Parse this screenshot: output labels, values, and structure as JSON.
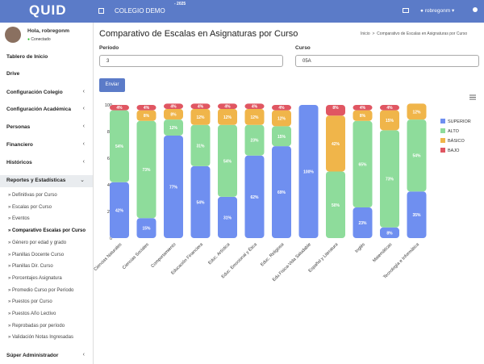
{
  "header": {
    "logo": "QUID",
    "school": "COLEGIO DEMO",
    "year": "- 2025",
    "user": "robregonm"
  },
  "sidebar": {
    "greeting": "Hola, robregonm",
    "status": "Conectado",
    "menu": [
      "Tablero de Inicio",
      "Drive",
      "Configuración Colegio",
      "Configuración Académica",
      "Personas",
      "Financiero",
      "Históricos",
      "Reportes y Estadísticas"
    ],
    "submenu": [
      "Definitivas por Curso",
      "Escalas por Curso",
      "Eventos",
      "Comparativo Escalas por Curso",
      "Género por edad y grado",
      "Planillas Docente Curso",
      "Planillas Dir. Curso",
      "Porcentajes Asignatura",
      "Promedio Curso por Período",
      "Puestos por Curso",
      "Puestos Año Lectivo",
      "Reprobadas por período",
      "Validación Notas Ingresadas"
    ],
    "last": "Súper Administrador"
  },
  "page": {
    "title": "Comparativo de Escalas en Asignaturas por Curso",
    "breadcrumb": [
      "Inicio",
      "Comparativo de Escalas en Asignaturas por Curso"
    ],
    "period_label": "Período",
    "period_value": "3",
    "course_label": "Curso",
    "course_value": "05A",
    "button": "Enviar"
  },
  "chart_data": {
    "type": "stacked_bar",
    "categories": [
      "Ciencias Naturales",
      "Ciencias Sociales",
      "Comportamiento",
      "Educación Financiera",
      "Educ. Artística",
      "Educ. Emocional y Ética",
      "Educ. Religiosa",
      "Edu.Física-Vida Saludable",
      "Español y Literatura",
      "Inglés",
      "Matemáticas",
      "Tecnología e Informática"
    ],
    "series": [
      {
        "name": "SUPERIOR",
        "color": "#6f8ff0",
        "values": [
          42,
          15,
          77,
          54,
          31,
          62,
          69,
          100,
          0,
          23,
          8,
          35
        ],
        "value_labels": [
          "42%",
          "15%",
          "77%",
          "54%",
          "31%",
          "62%",
          "69%",
          "100%",
          null,
          "23%",
          "8%",
          "35%"
        ]
      },
      {
        "name": "ALTO",
        "color": "#8edc9b",
        "values": [
          54,
          73,
          12,
          31,
          54,
          23,
          15,
          0,
          50,
          65,
          73,
          54
        ],
        "value_labels": [
          "54%",
          "73%",
          "12%",
          "31%",
          "54%",
          "23%",
          "15%",
          null,
          "50%",
          "65%",
          "73%",
          "54%"
        ]
      },
      {
        "name": "BÁSICO",
        "color": "#f0b54a",
        "values": [
          0,
          8,
          8,
          12,
          12,
          12,
          12,
          0,
          42,
          8,
          15,
          12
        ],
        "value_labels": [
          null,
          "8%",
          "8%",
          "12%",
          "12%",
          "12%",
          "12%",
          null,
          "42%",
          "8%",
          "15%",
          "12%"
        ]
      },
      {
        "name": "BAJO",
        "color": "#e05662",
        "values": [
          4,
          4,
          4,
          4,
          4,
          4,
          4,
          0,
          8,
          4,
          4,
          0
        ],
        "value_labels": [
          "4%",
          "4%",
          "4%",
          "4%",
          "4%",
          "4%",
          "4%",
          null,
          "8%",
          "4%",
          "4%",
          null
        ]
      }
    ],
    "ylim": [
      0,
      100
    ],
    "yticks": [
      0,
      20,
      40,
      60,
      80,
      100
    ],
    "grid": false,
    "legend": "right"
  }
}
